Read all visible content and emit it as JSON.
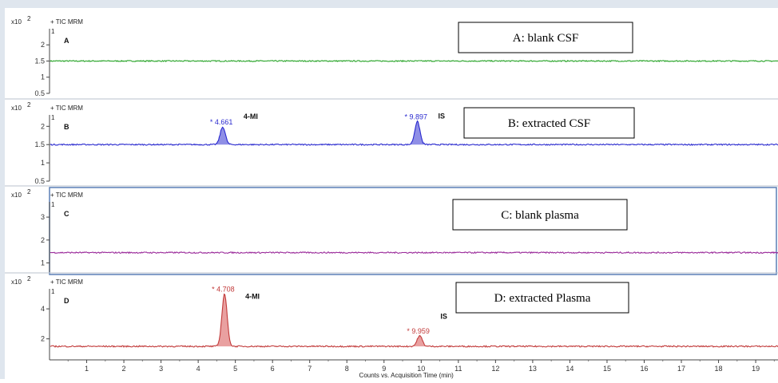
{
  "chart_data": [
    {
      "type": "line",
      "header": "+ TIC MRM",
      "multiplier": "x10",
      "multiplier_exp": "2",
      "panel_label": "A",
      "top_tick": "1",
      "legend": "A: blank CSF",
      "yticks": [
        0.5,
        1,
        1.5,
        2
      ],
      "ytick_labels": [
        "0.5",
        "1",
        "1.5",
        "2"
      ],
      "ylim": [
        0.5,
        2.4
      ],
      "baseline": 1.5,
      "color": "#22a122",
      "fill": "#9fd89f",
      "peaks": []
    },
    {
      "type": "line",
      "header": "+ TIC MRM",
      "multiplier": "x10",
      "multiplier_exp": "2",
      "panel_label": "B",
      "top_tick": "1",
      "legend": "B: extracted CSF",
      "yticks": [
        0.5,
        1,
        1.5,
        2
      ],
      "ytick_labels": [
        "0.5",
        "1",
        "1.5",
        "2"
      ],
      "ylim": [
        0.5,
        2.4
      ],
      "baseline": 1.5,
      "color": "#2a2acf",
      "fill": "#8f8fe6",
      "peaks": [
        {
          "rt": 4.661,
          "rt_label": "* 4.661",
          "top": 1.98,
          "name": "4-MI"
        },
        {
          "rt": 9.897,
          "rt_label": "* 9.897",
          "top": 2.13,
          "name": "IS"
        }
      ]
    },
    {
      "type": "line",
      "header": "+ TIC MRM",
      "multiplier": "x10",
      "multiplier_exp": "2",
      "panel_label": "C",
      "top_tick": "1",
      "legend": "C: blank plasma",
      "yticks": [
        1,
        2,
        3
      ],
      "ytick_labels": [
        "1",
        "2",
        "3"
      ],
      "ylim": [
        0.6,
        3.7
      ],
      "baseline": 1.45,
      "color": "#9a2a9a",
      "fill": "#d9a3d9",
      "peaks": []
    },
    {
      "type": "line",
      "header": "+ TIC MRM",
      "multiplier": "x10",
      "multiplier_exp": "2",
      "panel_label": "D",
      "top_tick": "1",
      "legend": "D: extracted Plasma",
      "yticks": [
        2,
        4
      ],
      "ytick_labels": [
        "2",
        "4"
      ],
      "ylim": [
        0.6,
        5.6
      ],
      "baseline": 1.5,
      "color": "#c23b3b",
      "fill": "#e9a0a0",
      "peaks": [
        {
          "rt": 4.708,
          "rt_label": "* 4.708",
          "top": 5.0,
          "name": "4-MI"
        },
        {
          "rt": 9.959,
          "rt_label": "* 9.959",
          "top": 2.2,
          "name": "IS"
        }
      ]
    }
  ],
  "x_axis": {
    "label": "Counts vs. Acquisition Time (min)",
    "xlim": [
      0,
      19.6
    ],
    "ticks": [
      1,
      2,
      3,
      4,
      5,
      6,
      7,
      8,
      9,
      10,
      11,
      12,
      13,
      14,
      15,
      16,
      17,
      18,
      19
    ]
  }
}
